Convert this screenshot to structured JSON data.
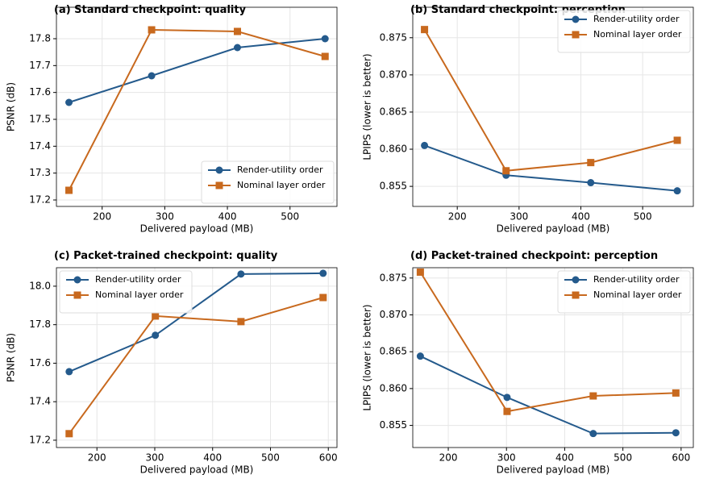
{
  "chart_data": [
    {
      "type": "line",
      "title": "(a) Standard checkpoint: quality",
      "x_label": "Delivered payload (MB)",
      "y_label": "PSNR (dB)",
      "x": [
        147,
        279,
        416,
        556
      ],
      "xlim": [
        127,
        575
      ],
      "xticks": [
        200,
        300,
        400,
        500
      ],
      "ylim": [
        17.176,
        17.917
      ],
      "yticks": [
        17.2,
        17.3,
        17.4,
        17.5,
        17.6,
        17.7,
        17.8
      ],
      "grid": true,
      "legend": "lower right",
      "series": [
        {
          "name": "Render-utility order",
          "color": "#245a8c",
          "marker": "circle",
          "values": [
            17.563,
            17.662,
            17.767,
            17.8
          ]
        },
        {
          "name": "Nominal layer order",
          "color": "#c8691e",
          "marker": "square",
          "values": [
            17.236,
            17.833,
            17.827,
            17.734
          ]
        }
      ]
    },
    {
      "type": "line",
      "title": "(b) Standard checkpoint: perception",
      "x_label": "Delivered payload (MB)",
      "y_label": "LPIPS (lower is better)",
      "x": [
        147,
        279,
        416,
        556
      ],
      "xlim": [
        128,
        582
      ],
      "xticks": [
        200,
        300,
        400,
        500
      ],
      "ylim": [
        0.8523,
        0.8791
      ],
      "yticks": [
        0.855,
        {
          "value": 0.86,
          "label": "0.860"
        },
        0.865,
        {
          "value": 0.87,
          "label": "0.870"
        },
        0.875
      ],
      "grid": true,
      "legend": "upper right",
      "series": [
        {
          "name": "Render-utility order",
          "color": "#245a8c",
          "marker": "circle",
          "values": [
            0.8605,
            0.8565,
            0.8555,
            0.8544
          ]
        },
        {
          "name": "Nominal layer order",
          "color": "#c8691e",
          "marker": "square",
          "values": [
            0.8761,
            0.8571,
            0.8582,
            0.8612
          ]
        }
      ]
    },
    {
      "type": "line",
      "title": "(c) Packet-trained checkpoint: quality",
      "x_label": "Delivered payload (MB)",
      "y_label": "PSNR (dB)",
      "x": [
        152,
        301,
        449,
        591
      ],
      "xlim": [
        130,
        615
      ],
      "xticks": [
        200,
        300,
        400,
        500,
        600
      ],
      "ylim": [
        17.162,
        18.096
      ],
      "yticks": [
        17.2,
        17.4,
        17.6,
        17.8,
        {
          "value": 18,
          "label": "18.0"
        }
      ],
      "grid": true,
      "legend": "upper left",
      "series": [
        {
          "name": "Render-utility order",
          "color": "#245a8c",
          "marker": "circle",
          "values": [
            17.556,
            17.745,
            18.063,
            18.067
          ]
        },
        {
          "name": "Nominal layer order",
          "color": "#c8691e",
          "marker": "square",
          "values": [
            17.234,
            17.845,
            17.816,
            17.941
          ]
        }
      ]
    },
    {
      "type": "line",
      "title": "(d) Packet-trained checkpoint: perception",
      "x_label": "Delivered payload (MB)",
      "y_label": "LPIPS (lower is better)",
      "x": [
        152,
        301,
        449,
        591
      ],
      "xlim": [
        139,
        621
      ],
      "xticks": [
        200,
        300,
        400,
        500,
        600
      ],
      "ylim": [
        0.852,
        0.8764
      ],
      "yticks": [
        0.855,
        {
          "value": 0.86,
          "label": "0.860"
        },
        0.865,
        {
          "value": 0.87,
          "label": "0.870"
        },
        0.875
      ],
      "grid": true,
      "legend": "upper right",
      "series": [
        {
          "name": "Render-utility order",
          "color": "#245a8c",
          "marker": "circle",
          "values": [
            0.8644,
            0.8588,
            0.8539,
            0.854
          ]
        },
        {
          "name": "Nominal layer order",
          "color": "#c8691e",
          "marker": "square",
          "values": [
            0.8758,
            0.8569,
            0.859,
            0.8594
          ]
        }
      ]
    }
  ]
}
